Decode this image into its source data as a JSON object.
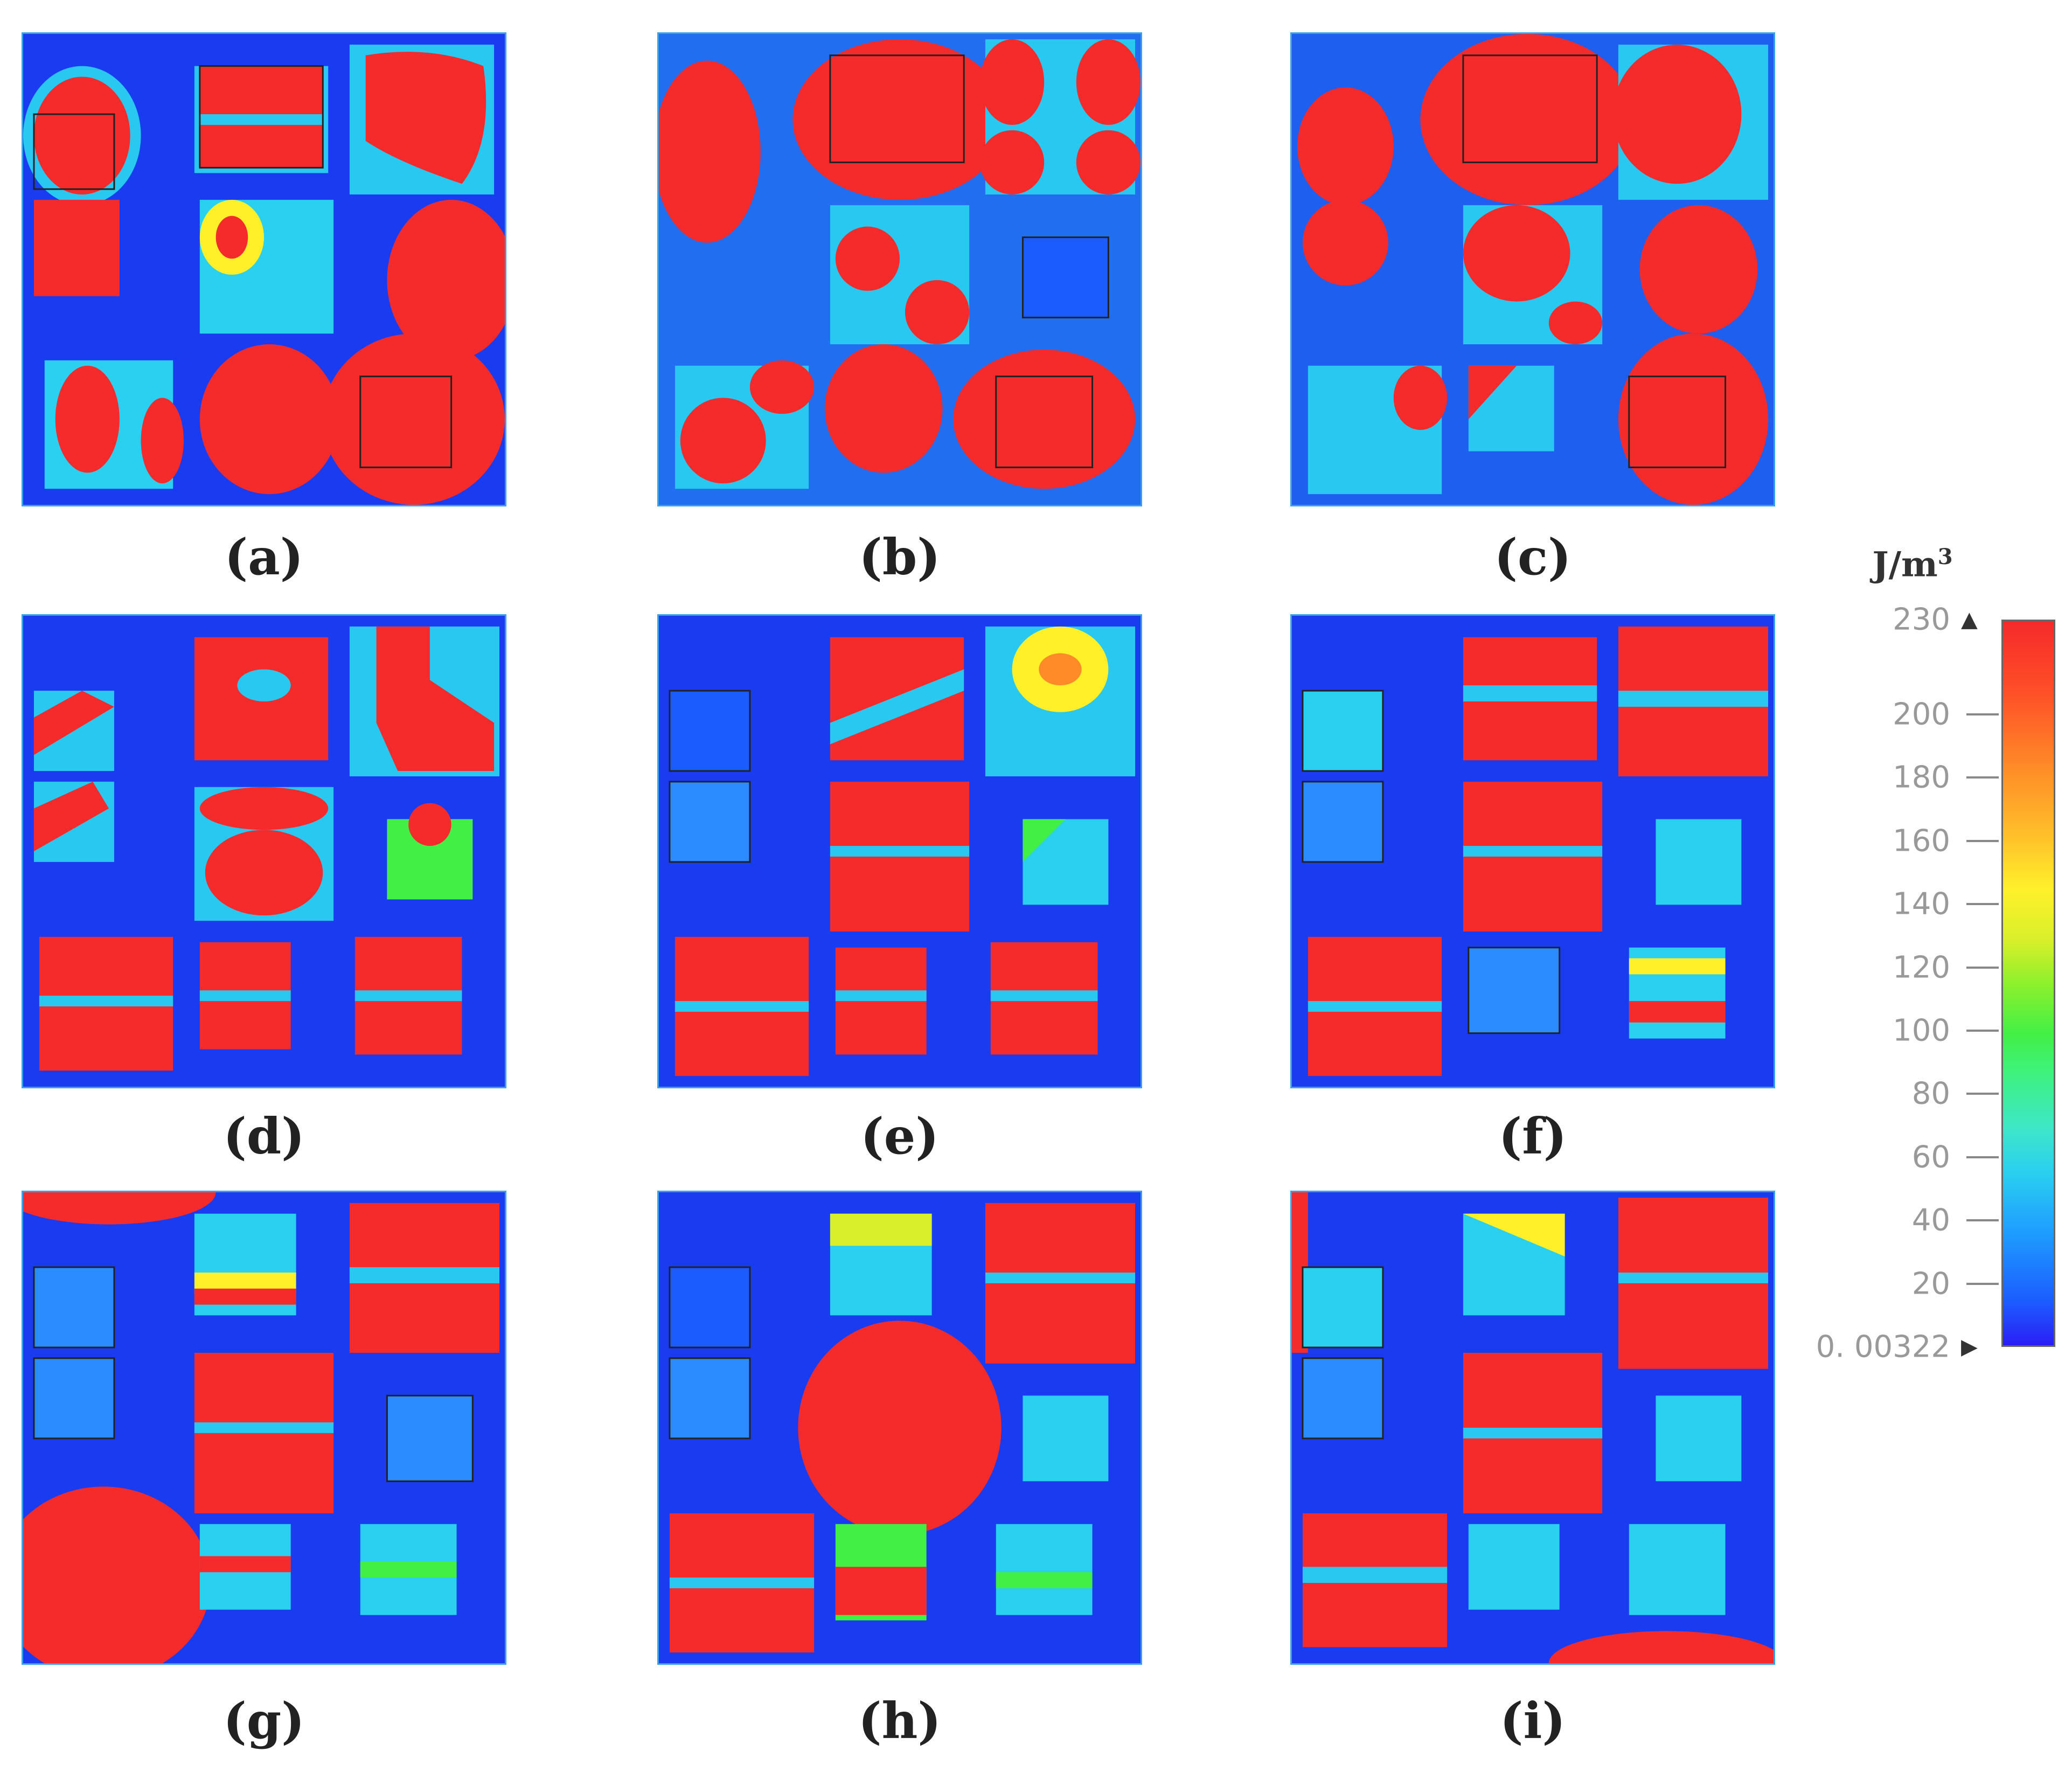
{
  "panels": [
    {
      "label": "(a)"
    },
    {
      "label": "(b)"
    },
    {
      "label": "(c)"
    },
    {
      "label": "(d)"
    },
    {
      "label": "(e)"
    },
    {
      "label": "(f)"
    },
    {
      "label": "(g)"
    },
    {
      "label": "(h)"
    },
    {
      "label": "(i)"
    }
  ],
  "colorbar": {
    "unit": "J/m",
    "unit_sup": "3",
    "ticks": [
      {
        "value": 230,
        "label": "230"
      },
      {
        "value": 200,
        "label": "200"
      },
      {
        "value": 180,
        "label": "180"
      },
      {
        "value": 160,
        "label": "160"
      },
      {
        "value": 140,
        "label": "140"
      },
      {
        "value": 120,
        "label": "120"
      },
      {
        "value": 100,
        "label": "100"
      },
      {
        "value": 80,
        "label": "80"
      },
      {
        "value": 60,
        "label": "60"
      },
      {
        "value": 40,
        "label": "40"
      },
      {
        "value": 20,
        "label": "20"
      },
      {
        "value": 0.00322,
        "label": "0. 00322"
      }
    ],
    "min": 0.00322,
    "max": 230,
    "colors": {
      "low": "#2b1ef5",
      "mid": "#42f045",
      "high": "#f52a2a",
      "background_field": "#1a3cf0"
    }
  }
}
